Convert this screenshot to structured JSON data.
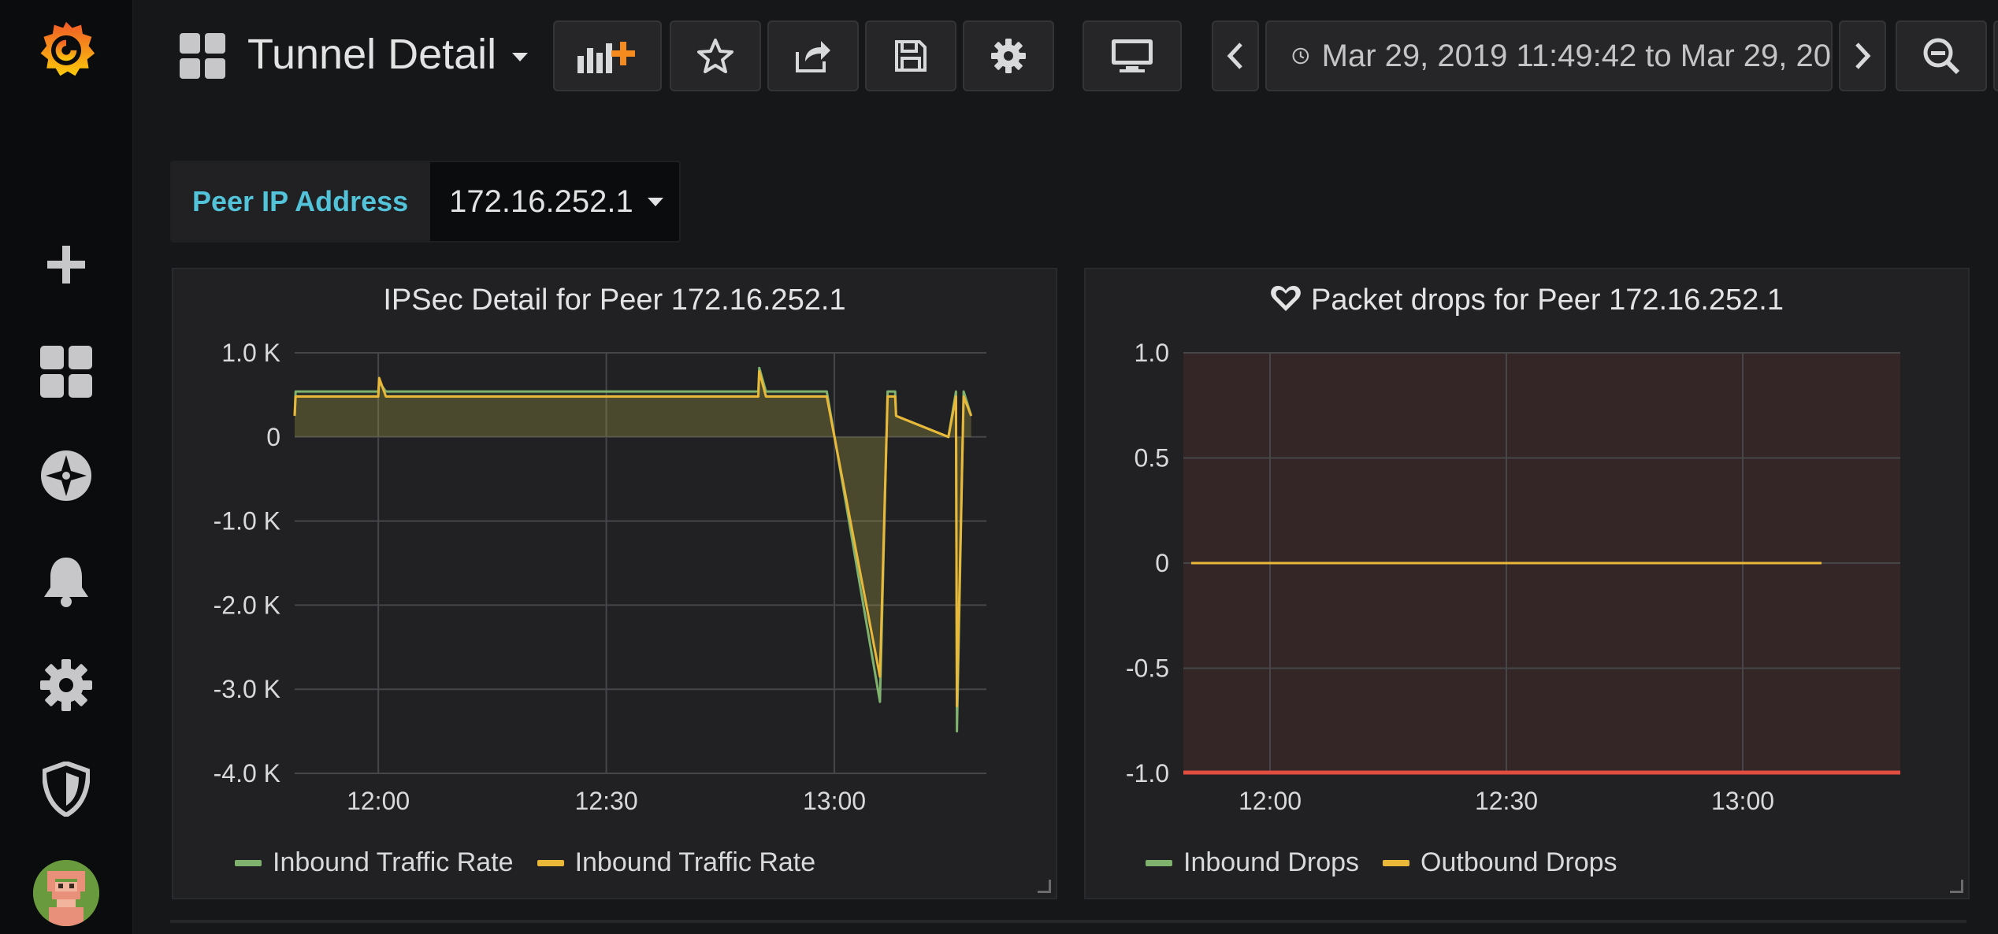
{
  "header": {
    "title": "Tunnel Detail",
    "time_range": "Mar 29, 2019 11:49:42 to Mar 29, 20"
  },
  "sidebar": {
    "items": [
      {
        "name": "grafana-logo-icon"
      },
      {
        "name": "create-icon"
      },
      {
        "name": "dashboards-icon"
      },
      {
        "name": "explore-icon"
      },
      {
        "name": "alerting-icon"
      },
      {
        "name": "configuration-icon"
      },
      {
        "name": "server-admin-shield-icon"
      },
      {
        "name": "user-avatar"
      }
    ]
  },
  "toolbar": {
    "buttons": [
      "add-panel-icon",
      "star-icon",
      "share-icon",
      "save-icon",
      "settings-icon",
      "tv-mode-icon",
      "chevron-left-icon",
      "chevron-right-icon",
      "zoom-out-icon"
    ]
  },
  "variables": {
    "peer_label": "Peer IP Address",
    "peer_value": "172.16.252.1"
  },
  "colors": {
    "green": "#7eb26d",
    "yellow": "#eab839",
    "label_blue": "#52c3d9",
    "threshold_red": "#e24d42"
  },
  "panels": [
    {
      "title": "IPSec Detail for Peer 172.16.252.1",
      "legend": [
        "Inbound Traffic Rate",
        "Inbound Traffic Rate"
      ]
    },
    {
      "title": "Packet drops for Peer 172.16.252.1",
      "legend": [
        "Inbound Drops",
        "Outbound Drops"
      ]
    }
  ],
  "chart_data": [
    {
      "type": "area",
      "title": "IPSec Detail for Peer 172.16.252.1",
      "xlabel": "",
      "ylabel": "",
      "x_ticks": [
        "12:00",
        "12:30",
        "13:00"
      ],
      "y_ticks": [
        "1.0 K",
        "0",
        "-1.0 K",
        "-2.0 K",
        "-3.0 K",
        "-4.0 K"
      ],
      "ylim": [
        -4000,
        1000
      ],
      "xlim_minutes": [
        -10.5,
        10.5
      ],
      "grid": true,
      "legend_placement": "bottom-left",
      "series": [
        {
          "name": "Inbound Traffic Rate",
          "color": "#7eb26d",
          "x": [
            -10.3,
            -10.1,
            -0.5,
            -0.4,
            -0.3,
            -0.2,
            0.2,
            1.0,
            1.3,
            1.6,
            2.2,
            3.0,
            3.6,
            4.0,
            4.4,
            4.6,
            5.0,
            5.4,
            5.7
          ],
          "y": [
            250,
            540,
            540,
            650,
            540,
            540,
            540,
            540,
            540,
            540,
            540,
            540,
            540,
            540,
            540,
            540,
            540,
            540,
            540
          ]
        }
      ],
      "series_full": [
        {
          "name": "Inbound Traffic Rate",
          "color": "#7eb26d",
          "points_hhmm": [
            [
              "11:49",
              250
            ],
            [
              "11:49",
              540
            ],
            [
              "12:00",
              540
            ],
            [
              "12:00",
              650
            ],
            [
              "12:01",
              540
            ],
            [
              "12:50",
              540
            ],
            [
              "12:50",
              820
            ],
            [
              "12:51",
              540
            ],
            [
              "12:59",
              540
            ],
            [
              "13:06",
              -3150
            ],
            [
              "13:07",
              540
            ],
            [
              "13:08",
              540
            ],
            [
              "13:08",
              250
            ],
            [
              "13:15",
              0
            ],
            [
              "13:16",
              540
            ],
            [
              "13:16",
              -3500
            ],
            [
              "13:17",
              540
            ],
            [
              "13:18",
              250
            ]
          ]
        },
        {
          "name": "Inbound Traffic Rate",
          "color": "#eab839",
          "points_hhmm": [
            [
              "11:49",
              250
            ],
            [
              "11:49",
              480
            ],
            [
              "12:00",
              480
            ],
            [
              "12:00",
              700
            ],
            [
              "12:01",
              480
            ],
            [
              "12:50",
              480
            ],
            [
              "12:50",
              780
            ],
            [
              "12:51",
              480
            ],
            [
              "12:59",
              480
            ],
            [
              "13:06",
              -2850
            ],
            [
              "13:07",
              480
            ],
            [
              "13:08",
              480
            ],
            [
              "13:08",
              250
            ],
            [
              "13:15",
              0
            ],
            [
              "13:16",
              480
            ],
            [
              "13:16",
              -3200
            ],
            [
              "13:17",
              480
            ],
            [
              "13:18",
              250
            ]
          ]
        }
      ]
    },
    {
      "type": "line",
      "title": "Packet drops for Peer 172.16.252.1",
      "xlabel": "",
      "ylabel": "",
      "x_ticks": [
        "12:00",
        "12:30",
        "13:00"
      ],
      "y_ticks": [
        "1.0",
        "0.5",
        "0",
        "-0.5",
        "-1.0"
      ],
      "ylim": [
        -1.0,
        1.0
      ],
      "grid": true,
      "legend_placement": "bottom-left",
      "series": [
        {
          "name": "Inbound Drops",
          "color": "#7eb26d",
          "start": "11:50",
          "end": "13:10",
          "value": 0
        },
        {
          "name": "Outbound Drops",
          "color": "#eab839",
          "start": "11:50",
          "end": "13:10",
          "value": 0
        }
      ]
    }
  ]
}
